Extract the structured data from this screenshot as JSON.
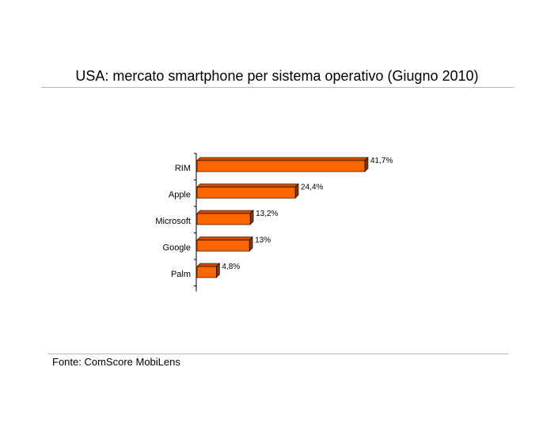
{
  "header": {
    "title": "USA: mercato smartphone per sistema operativo (Giugno 2010)"
  },
  "footer": {
    "source": "Fonte: ComScore MobiLens"
  },
  "colors": {
    "bar_front": "#ff6600",
    "bar_top": "#cc4d00",
    "bar_side": "#8a3300",
    "rule": "#b9b9b9",
    "axis": "#000000"
  },
  "chart_data": {
    "type": "bar",
    "orientation": "horizontal",
    "style": "3d",
    "categories": [
      "RIM",
      "Apple",
      "Microsoft",
      "Google",
      "Palm"
    ],
    "values": [
      41.7,
      24.4,
      13.2,
      13,
      4.8
    ],
    "value_labels": [
      "41,7%",
      "24,4%",
      "13,2%",
      "13%",
      "4,8%"
    ],
    "unit": "%",
    "xlim": [
      0,
      45
    ],
    "grid": false,
    "legend": "none"
  }
}
